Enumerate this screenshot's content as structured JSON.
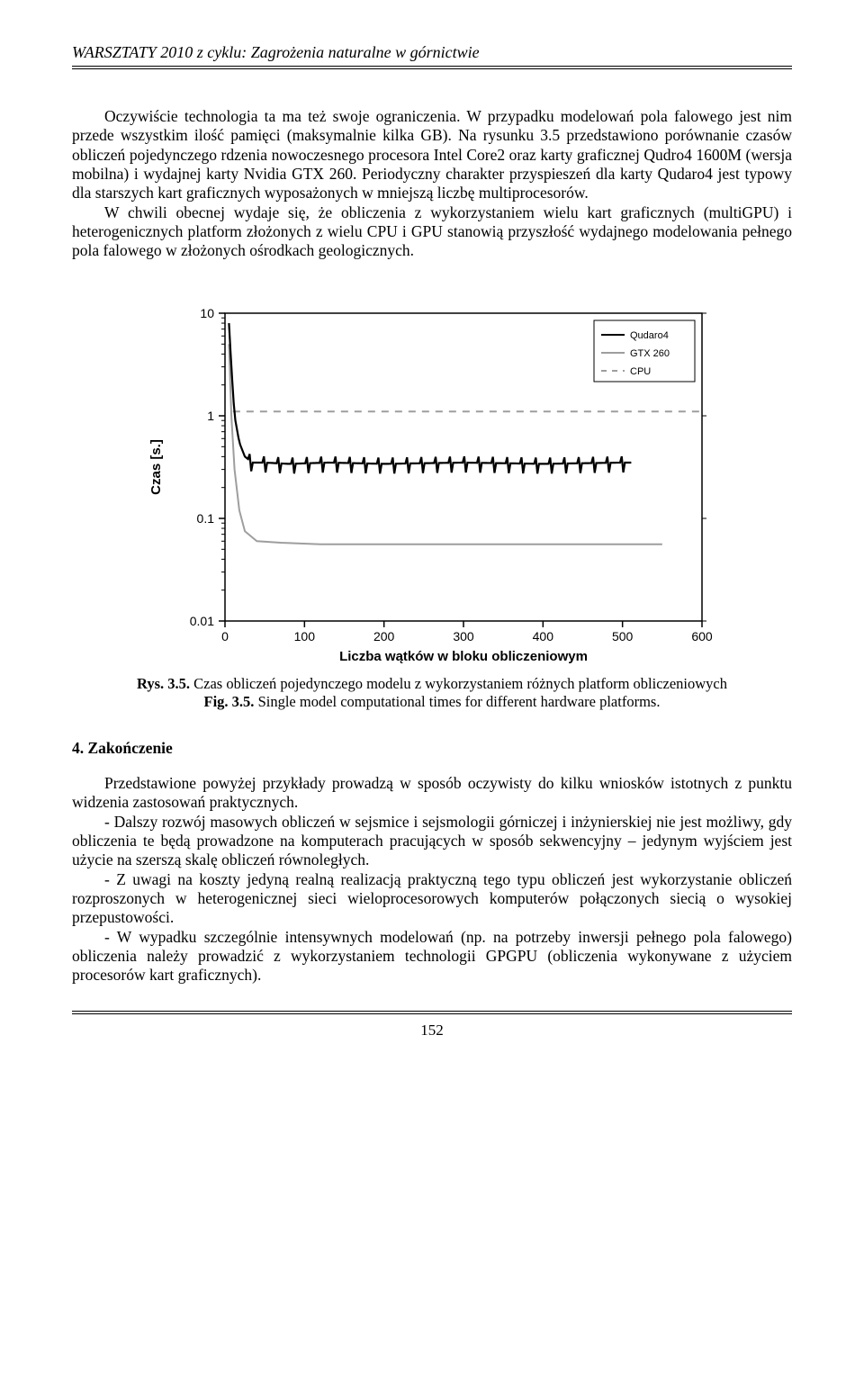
{
  "header": {
    "title": "WARSZTATY 2010 z cyklu: Zagrożenia naturalne w górnictwie"
  },
  "paragraphs": {
    "p1": "Oczywiście technologia ta ma też swoje ograniczenia. W przypadku modelowań pola falowego jest nim przede wszystkim ilość pamięci (maksymalnie kilka GB). Na rysunku 3.5 przedstawiono porównanie czasów obliczeń pojedynczego rdzenia nowoczesnego procesora Intel Core2 oraz karty graficznej Qudro4 1600M (wersja mobilna) i wydajnej karty Nvidia GTX 260. Periodyczny charakter przyspieszeń dla karty Qudaro4 jest typowy dla starszych kart graficznych wyposażonych w mniejszą liczbę multiprocesorów.",
    "p2": "W chwili obecnej wydaje się, że obliczenia z wykorzystaniem wielu kart graficznych (multiGPU) i heterogenicznych platform złożonych z wielu CPU i GPU stanowią przyszłość wydajnego modelowania pełnego pola falowego w złożonych ośrodkach geologicznych."
  },
  "chart": {
    "type": "line-log",
    "xlabel": "Liczba wątków w bloku obliczeniowym",
    "ylabel": "Czas [s.]",
    "xlim": [
      0,
      600
    ],
    "xtick_step": 100,
    "xticks": [
      "0",
      "100",
      "200",
      "300",
      "400",
      "500",
      "600"
    ],
    "ylim_log": [
      0.01,
      10
    ],
    "yticks": [
      "0.01",
      "0.1",
      "1",
      "10"
    ],
    "legend": {
      "position": "top-right-inside",
      "items": [
        {
          "label": "Qudaro4",
          "color": "#000000",
          "dash": "none",
          "width": 2
        },
        {
          "label": "GTX 260",
          "color": "#9e9e9e",
          "dash": "none",
          "width": 2
        },
        {
          "label": "CPU",
          "color": "#9e9e9e",
          "dash": "6,6",
          "width": 2
        }
      ]
    },
    "colors": {
      "background": "#ffffff",
      "axis": "#000000",
      "tick_font": "#000000",
      "series_qudaro4": "#000000",
      "series_gtx260": "#9e9e9e",
      "series_cpu": "#9e9e9e"
    },
    "fontsize": {
      "axis_label": 15,
      "tick": 14,
      "legend": 11
    },
    "series": {
      "cpu": {
        "color": "#9e9e9e",
        "dash": "8,7",
        "width": 2,
        "points": [
          {
            "x": 10,
            "y": 1.1
          },
          {
            "x": 600,
            "y": 1.1
          }
        ]
      },
      "qudaro4": {
        "color": "#000000",
        "dash": "none",
        "width": 2.2,
        "noise_amp": 0.06,
        "points": [
          {
            "x": 5,
            "y": 8.0
          },
          {
            "x": 8,
            "y": 3.0
          },
          {
            "x": 12,
            "y": 1.0
          },
          {
            "x": 18,
            "y": 0.55
          },
          {
            "x": 25,
            "y": 0.4
          },
          {
            "x": 35,
            "y": 0.35
          },
          {
            "x": 50,
            "y": 0.35
          },
          {
            "x": 80,
            "y": 0.34
          },
          {
            "x": 130,
            "y": 0.35
          },
          {
            "x": 200,
            "y": 0.34
          },
          {
            "x": 300,
            "y": 0.35
          },
          {
            "x": 400,
            "y": 0.34
          },
          {
            "x": 500,
            "y": 0.35
          },
          {
            "x": 512,
            "y": 0.35
          }
        ]
      },
      "gtx260": {
        "color": "#9e9e9e",
        "dash": "none",
        "width": 2,
        "points": [
          {
            "x": 5,
            "y": 5.0
          },
          {
            "x": 8,
            "y": 1.0
          },
          {
            "x": 12,
            "y": 0.3
          },
          {
            "x": 18,
            "y": 0.12
          },
          {
            "x": 25,
            "y": 0.075
          },
          {
            "x": 40,
            "y": 0.06
          },
          {
            "x": 70,
            "y": 0.058
          },
          {
            "x": 120,
            "y": 0.056
          },
          {
            "x": 200,
            "y": 0.056
          },
          {
            "x": 300,
            "y": 0.056
          },
          {
            "x": 400,
            "y": 0.056
          },
          {
            "x": 500,
            "y": 0.056
          },
          {
            "x": 550,
            "y": 0.056
          }
        ]
      }
    }
  },
  "caption": {
    "line1_bold": "Rys. 3.5.",
    "line1_rest": " Czas obliczeń pojedynczego modelu z wykorzystaniem różnych platform obliczeniowych",
    "line2_bold": "Fig. 3.5.",
    "line2_rest": " Single model computational times for different hardware platforms."
  },
  "section": {
    "heading": "4.  Zakończenie",
    "p1": "Przedstawione powyżej przykłady prowadzą w sposób oczywisty do kilku wniosków istotnych z punktu widzenia zastosowań praktycznych.",
    "p2": "- Dalszy rozwój masowych obliczeń w sejsmice i sejsmologii górniczej i inżynierskiej nie jest możliwy, gdy obliczenia te będą prowadzone na komputerach pracujących w sposób sekwencyjny – jedynym wyjściem jest użycie na szerszą skalę obliczeń równoległych.",
    "p3": "- Z uwagi na koszty jedyną realną realizacją praktyczną tego typu obliczeń jest wykorzystanie obliczeń rozproszonych w heterogenicznej sieci wieloprocesorowych komputerów połączonych siecią o wysokiej przepustowości.",
    "p4": "- W wypadku szczególnie intensywnych modelowań (np. na potrzeby inwersji pełnego pola falowego) obliczenia należy prowadzić z wykorzystaniem technologii GPGPU (obliczenia wykonywane z użyciem procesorów kart graficznych)."
  },
  "page_number": "152"
}
